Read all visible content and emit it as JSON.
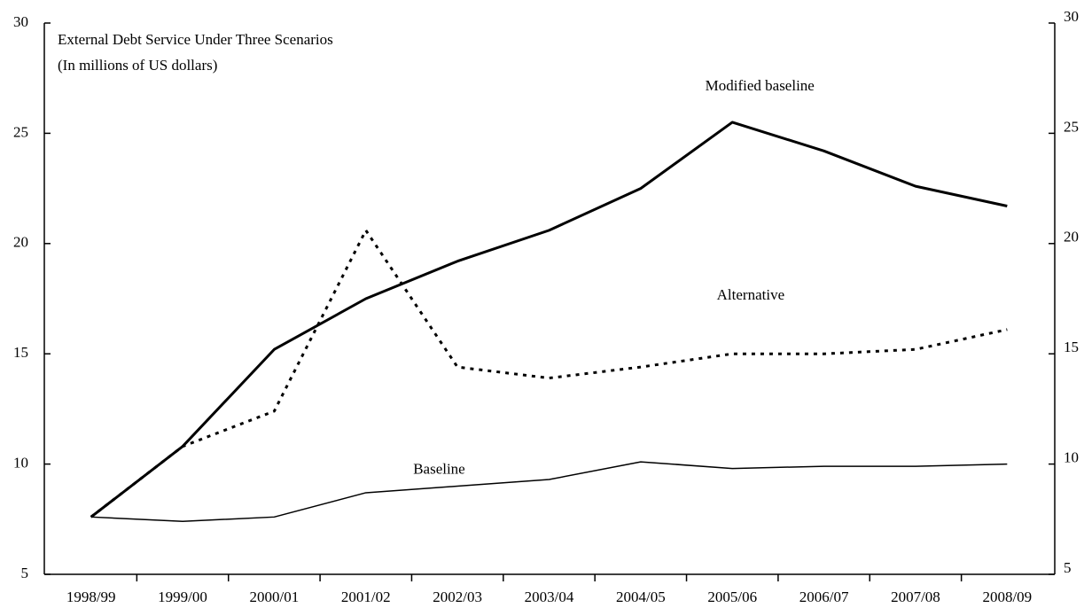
{
  "chart_data": {
    "type": "line",
    "title": "External Debt Service Under Three Scenarios",
    "subtitle": "(In millions of US dollars)",
    "categories": [
      "1998/99",
      "1999/00",
      "2000/01",
      "2001/02",
      "2002/03",
      "2003/04",
      "2004/05",
      "2005/06",
      "2006/07",
      "2007/08",
      "2008/09"
    ],
    "series": [
      {
        "name": "Modified baseline",
        "color": "#000000",
        "line_style": "solid",
        "values": [
          7.6,
          10.8,
          15.2,
          17.5,
          19.2,
          20.6,
          22.5,
          25.5,
          24.2,
          22.6,
          21.7
        ]
      },
      {
        "name": "Alternative",
        "color": "#000000",
        "line_style": "dotted",
        "values": [
          7.6,
          10.8,
          12.4,
          20.6,
          14.4,
          13.9,
          14.4,
          15.0,
          15.0,
          15.2,
          16.1
        ]
      },
      {
        "name": "Baseline",
        "color": "#000000",
        "line_style": "solid",
        "values": [
          7.6,
          7.4,
          7.6,
          8.7,
          9.0,
          9.3,
          10.1,
          9.8,
          9.9,
          9.9,
          10.0
        ]
      }
    ],
    "ylim": [
      5,
      30
    ],
    "yticks": [
      5,
      10,
      15,
      20,
      25,
      30
    ],
    "y2lim": [
      5,
      30
    ],
    "y2ticks": [
      5,
      10,
      15,
      20,
      25,
      30
    ],
    "grid": false
  }
}
